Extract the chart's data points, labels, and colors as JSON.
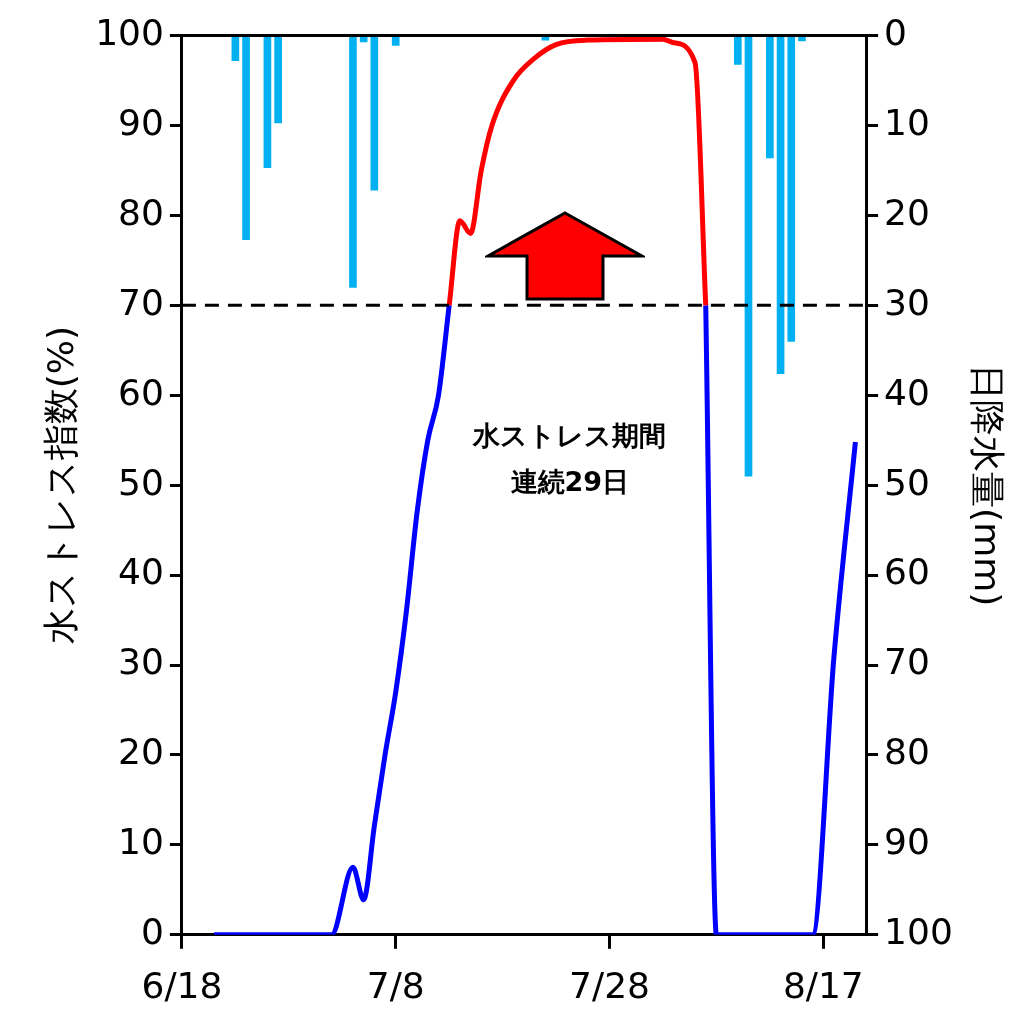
{
  "chart_data": {
    "type": "line",
    "ylabel": "水ストレス指数(%)",
    "y2label": "日降水量(mm)",
    "xlim": [
      "--06-18",
      "--08-21"
    ],
    "xticks": [
      {
        "value": "--06-18",
        "label": "6/18"
      },
      {
        "value": "--07-08",
        "label": "7/8"
      },
      {
        "value": "--07-28",
        "label": "7/28"
      },
      {
        "value": "--08-17",
        "label": "8/17"
      }
    ],
    "ylim": [
      0,
      100
    ],
    "yticks": [
      0,
      10,
      20,
      30,
      40,
      50,
      60,
      70,
      80,
      90,
      100
    ],
    "y2lim": [
      100,
      0
    ],
    "y2ticks": [
      0,
      10,
      20,
      30,
      40,
      50,
      60,
      70,
      80,
      90,
      100
    ],
    "grid": false,
    "legend": false,
    "marker": "none",
    "series": [
      {
        "type": "bar",
        "axis": "y2",
        "color": "#00b0f0",
        "x": [
          "--06-23",
          "--06-24",
          "--06-26",
          "--06-27",
          "--07-04",
          "--07-05",
          "--07-06",
          "--07-08",
          "--07-22",
          "--08-09",
          "--08-10",
          "--08-12",
          "--08-13",
          "--08-14",
          "--08-15"
        ],
        "values": [
          2.8,
          22.7,
          14.7,
          9.7,
          28,
          0.7,
          17.2,
          1.1,
          0.5,
          3.2,
          49,
          13.6,
          37.6,
          34,
          0.6
        ]
      },
      {
        "color": "#0000ff",
        "x": [
          "--06-21",
          "--07-02",
          "--07-04",
          "--07-05",
          "--07-06",
          "--07-07",
          "--07-08",
          "--07-09",
          "--07-10",
          "--07-11",
          "--07-12",
          "--07-13"
        ],
        "values": [
          0,
          0,
          7.5,
          3.9,
          12.1,
          20,
          27,
          36,
          47,
          55,
          60,
          70
        ]
      },
      {
        "color": "#ff0000",
        "x": [
          "--07-13",
          "--07-14",
          "--07-15",
          "--07-16",
          "--07-17",
          "--07-19",
          "--07-21",
          "--07-23",
          "--07-26",
          "--08-02",
          "--08-03",
          "--08-05",
          "--08-06"
        ],
        "values": [
          70,
          79.4,
          78,
          85,
          90,
          95,
          97.5,
          99,
          99.5,
          99.6,
          99.2,
          97,
          70
        ]
      },
      {
        "color": "#0000ff",
        "x": [
          "--08-06",
          "--08-07",
          "--08-16",
          "--08-18",
          "--08-20"
        ],
        "values": [
          70,
          0,
          0,
          31,
          54.8
        ]
      }
    ],
    "ref_lines": [
      {
        "axis": "y",
        "value": 70,
        "color": "#000000",
        "line_style": "dashed"
      }
    ],
    "annotations": [
      "水ストレス期間",
      "連続29日"
    ]
  }
}
